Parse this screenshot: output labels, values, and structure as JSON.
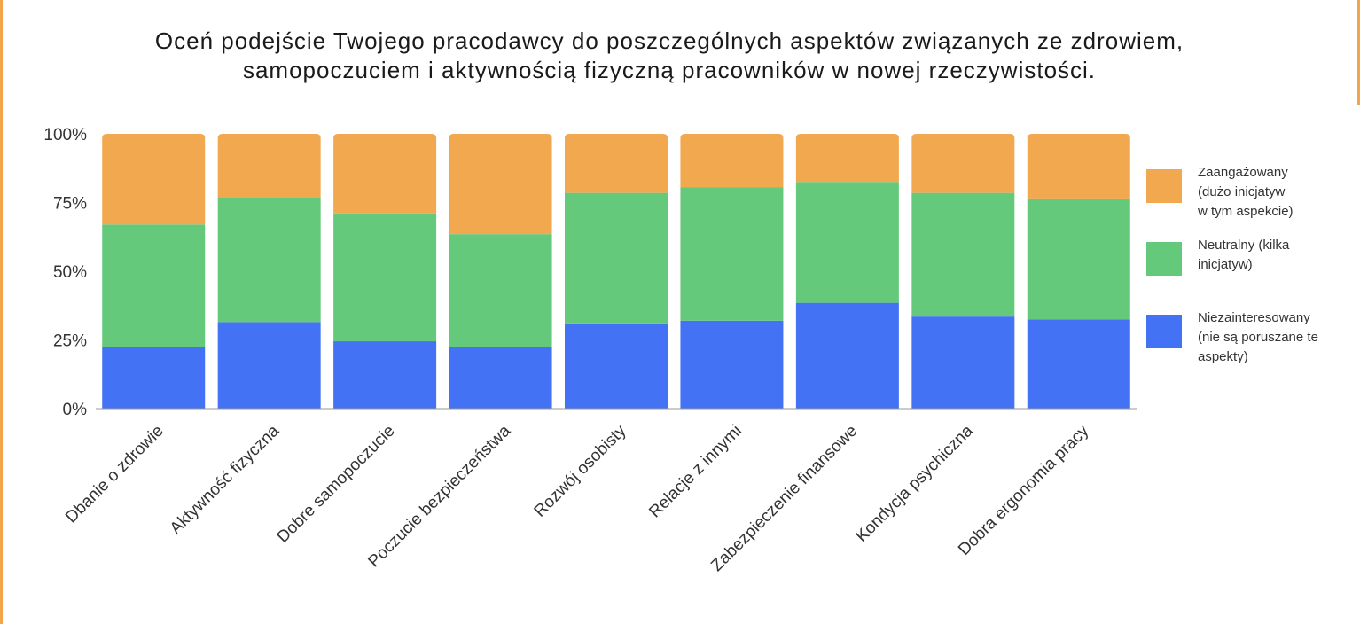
{
  "title_lines": [
    "Oceń podejście Twojego pracodawcy do poszczególnych aspektów związanych ze zdrowiem,",
    "samopoczuciem i aktywnością fizyczną pracowników w nowej rzeczywistości."
  ],
  "colors": {
    "niezainteresowany": "#4472f4",
    "neutralny": "#64c97a",
    "zaangazowany": "#f2a84f",
    "frame": "#f2a54a",
    "axis": "#999999"
  },
  "chart_data": {
    "type": "bar",
    "stacked": true,
    "normalized_percent": true,
    "categories": [
      "Dbanie o zdrowie",
      "Aktywność fizyczna",
      "Dobre samopoczucie",
      "Poczucie bezpieczeństwa",
      "Rozwój osobisty",
      "Relacje z innymi",
      "Zabezpieczenie finansowe",
      "Kondycja psychiczna",
      "Dobra ergonomia pracy"
    ],
    "series": [
      {
        "name": "Niezainteresowany (nie są poruszane te aspekty)",
        "legend_lines": [
          "Niezainteresowany",
          "(nie są poruszane te",
          "aspekty)"
        ],
        "color": "#4472f4",
        "values": [
          22.5,
          31.5,
          24.5,
          22.5,
          31,
          32,
          38.5,
          33.5,
          32.5
        ]
      },
      {
        "name": "Neutralny (kilka inicjatyw)",
        "legend_lines": [
          "Neutralny (kilka",
          "inicjatyw)"
        ],
        "color": "#64c97a",
        "values": [
          44.5,
          45.5,
          46.5,
          41,
          47.5,
          48.5,
          44,
          45,
          44
        ]
      },
      {
        "name": "Zaangażowany (dużo inicjatyw w tym aspekcie)",
        "legend_lines": [
          "Zaangażowany",
          "(dużo inicjatyw",
          "w tym aspekcie)"
        ],
        "color": "#f2a84f",
        "values": [
          33,
          23,
          29,
          36.5,
          21.5,
          19.5,
          17.5,
          21.5,
          23.5
        ]
      }
    ],
    "yticks": [
      "0%",
      "25%",
      "50%",
      "75%",
      "100%"
    ],
    "ytick_values": [
      0,
      25,
      50,
      75,
      100
    ],
    "ylim": [
      0,
      100
    ],
    "legend_position": "right",
    "grid": false
  }
}
